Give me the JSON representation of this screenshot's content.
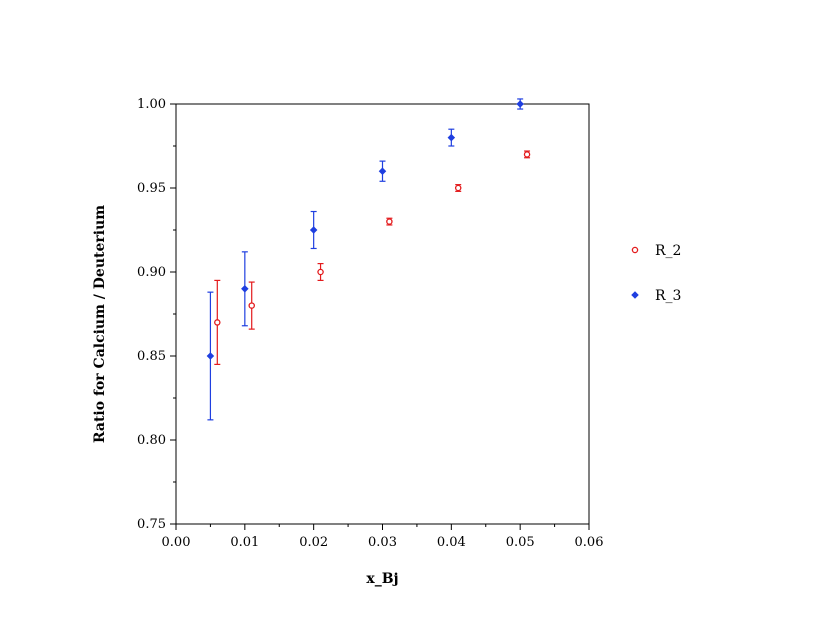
{
  "chart_data": {
    "type": "scatter",
    "title": "",
    "xlabel": "x_Bj",
    "ylabel": "Ratio for Calcium  / Deuterium",
    "xlim": [
      0.0,
      0.06
    ],
    "ylim": [
      0.75,
      1.0
    ],
    "x_ticks": [
      "0.00",
      "0.01",
      "0.02",
      "0.03",
      "0.04",
      "0.05",
      "0.06"
    ],
    "y_ticks": [
      "0.75",
      "0.80",
      "0.85",
      "0.90",
      "0.95",
      "1.00"
    ],
    "grid": false,
    "legend_position": "right",
    "series": [
      {
        "name": "R_2",
        "color": "#e31a1c",
        "marker": "open-circle",
        "x": [
          0.006,
          0.011,
          0.021,
          0.031,
          0.041,
          0.051
        ],
        "y": [
          0.87,
          0.88,
          0.9,
          0.93,
          0.95,
          0.97
        ],
        "err_low": [
          0.025,
          0.014,
          0.005,
          0.002,
          0.002,
          0.002
        ],
        "err_high": [
          0.025,
          0.014,
          0.005,
          0.002,
          0.002,
          0.002
        ]
      },
      {
        "name": "R_3",
        "color": "#1f3fe0",
        "marker": "filled-diamond",
        "x": [
          0.005,
          0.01,
          0.02,
          0.03,
          0.04,
          0.05
        ],
        "y": [
          0.85,
          0.89,
          0.925,
          0.96,
          0.98,
          1.0
        ],
        "err_low": [
          0.038,
          0.022,
          0.011,
          0.006,
          0.005,
          0.003
        ],
        "err_high": [
          0.038,
          0.022,
          0.011,
          0.006,
          0.005,
          0.003
        ]
      }
    ]
  }
}
